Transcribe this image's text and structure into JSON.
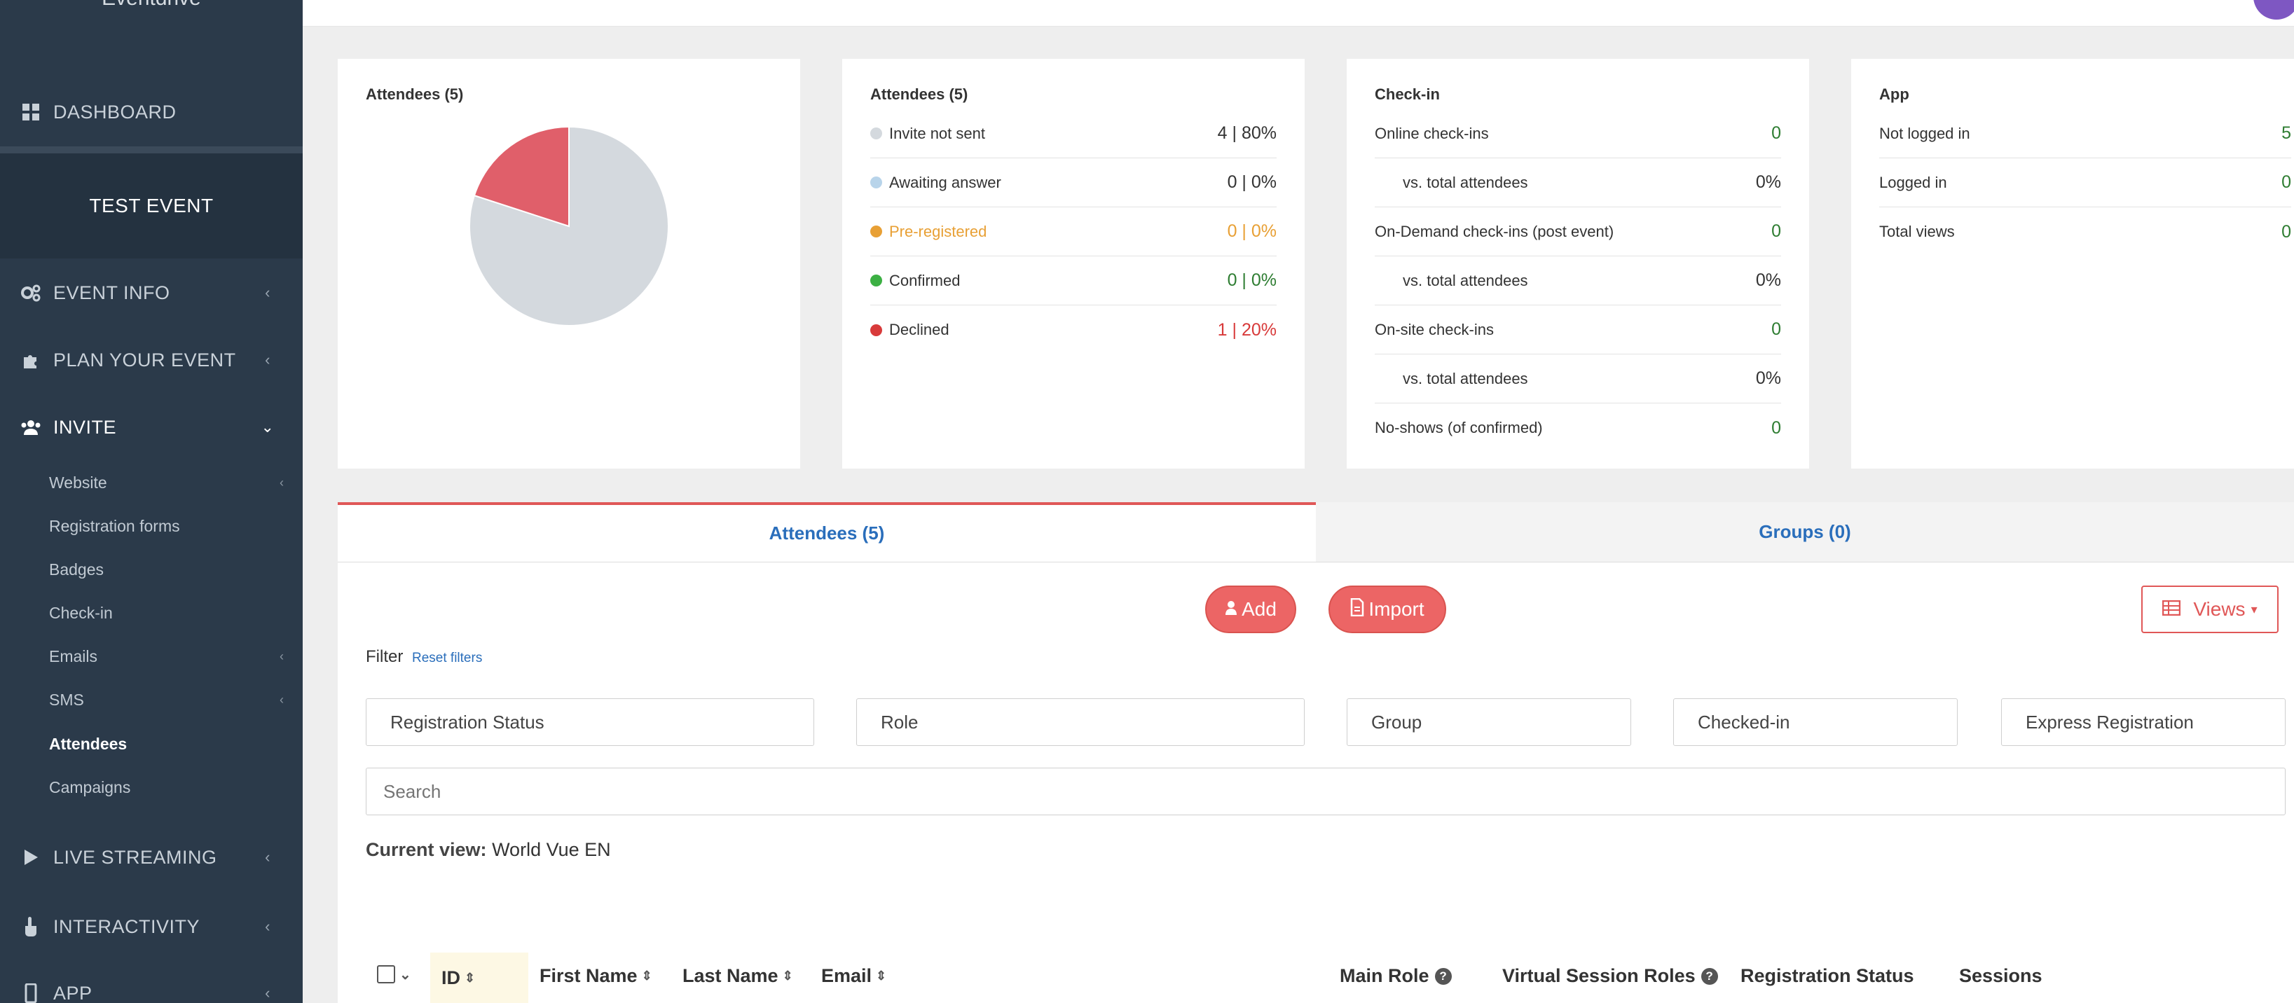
{
  "sidebar": {
    "brand": "Eventdrive",
    "dashboard": "DASHBOARD",
    "event_name": "TEST EVENT",
    "items": [
      {
        "label": "EVENT INFO"
      },
      {
        "label": "PLAN YOUR EVENT"
      },
      {
        "label": "INVITE"
      },
      {
        "label": "LIVE STREAMING"
      },
      {
        "label": "INTERACTIVITY"
      },
      {
        "label": "APP"
      }
    ],
    "sub_items": [
      {
        "label": "Website"
      },
      {
        "label": "Registration forms"
      },
      {
        "label": "Badges"
      },
      {
        "label": "Check-in"
      },
      {
        "label": "Emails"
      },
      {
        "label": "SMS"
      },
      {
        "label": "Attendees"
      },
      {
        "label": "Campaigns"
      }
    ]
  },
  "cards": {
    "pie": {
      "title": "Attendees (5)",
      "slices": [
        {
          "label": "Invite not sent",
          "value": 80,
          "color": "#d4d9de"
        },
        {
          "label": "Declined",
          "value": 20,
          "color": "#e05f6a"
        }
      ]
    },
    "attendees": {
      "title": "Attendees (5)",
      "rows": [
        {
          "label": "Invite not sent",
          "value": "4 | 80%",
          "color": "#d4d9de"
        },
        {
          "label": "Awaiting answer",
          "value": "0 | 0%",
          "color": "#b8d4ea"
        },
        {
          "label": "Pre-registered",
          "value": "0 | 0%",
          "color": "#e8a035"
        },
        {
          "label": "Confirmed",
          "value": "0 | 0%",
          "color": "#3cb043"
        },
        {
          "label": "Declined",
          "value": "1 | 20%",
          "color": "#d83a3a"
        }
      ]
    },
    "checkin": {
      "title": "Check-in",
      "rows": [
        {
          "label": "Online check-ins",
          "value": "0"
        },
        {
          "label": "vs. total attendees",
          "value": "0%"
        },
        {
          "label": "On-Demand check-ins (post event)",
          "value": "0"
        },
        {
          "label": "vs. total attendees",
          "value": "0%"
        },
        {
          "label": "On-site check-ins",
          "value": "0"
        },
        {
          "label": "vs. total attendees",
          "value": "0%"
        },
        {
          "label": "No-shows (of confirmed)",
          "value": "0"
        }
      ]
    },
    "app": {
      "title": "App",
      "rows": [
        {
          "label": "Not logged in",
          "value": "5"
        },
        {
          "label": "Logged in",
          "value": "0"
        },
        {
          "label": "Total views",
          "value": "0"
        }
      ]
    }
  },
  "tabs": {
    "attendees": "Attendees (5)",
    "groups": "Groups (0)"
  },
  "toolbar": {
    "add": "Add",
    "import": "Import",
    "views": "Views"
  },
  "filters": {
    "label": "Filter",
    "reset": "Reset filters",
    "registration_status": "Registration Status",
    "role": "Role",
    "group": "Group",
    "checked_in": "Checked-in",
    "express_registration": "Express Registration",
    "search_placeholder": "Search"
  },
  "current_view": {
    "label": "Current view:",
    "value": "World Vue EN"
  },
  "table": {
    "columns": {
      "id": "ID",
      "first_name": "First Name",
      "last_name": "Last Name",
      "email": "Email",
      "main_role": "Main Role",
      "virtual_session_roles": "Virtual Session Roles",
      "registration_status": "Registration Status",
      "sessions": "Sessions"
    }
  },
  "colors": {
    "sidebar_bg": "#2b3a4a",
    "accent_red": "#ec6565",
    "link_blue": "#2a6ebb",
    "value_green": "#2e7d32"
  }
}
